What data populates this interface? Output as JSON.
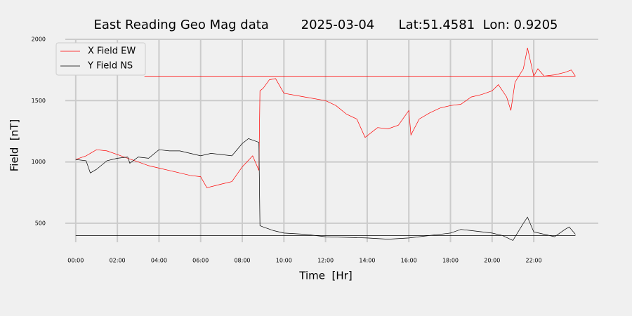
{
  "chart_data": {
    "type": "line",
    "title": "East Reading Geo Mag data        2025-03-04      Lat:51.4581  Lon: 0.9205",
    "x_label": "Time  [Hr]",
    "y_label": "Field  [nT]",
    "xlim": [
      -0.5,
      25.1
    ],
    "ylim": [
      345,
      2000
    ],
    "xticks": [
      {
        "value": 0,
        "label": "00:00"
      },
      {
        "value": 2,
        "label": "02:00"
      },
      {
        "value": 4,
        "label": "04:00"
      },
      {
        "value": 6,
        "label": "06:00"
      },
      {
        "value": 8,
        "label": "08:00"
      },
      {
        "value": 10,
        "label": "10:00"
      },
      {
        "value": 12,
        "label": "12:00"
      },
      {
        "value": 14,
        "label": "14:00"
      },
      {
        "value": 16,
        "label": "16:00"
      },
      {
        "value": 18,
        "label": "18:00"
      },
      {
        "value": 20,
        "label": "20:00"
      },
      {
        "value": 22,
        "label": "22:00"
      }
    ],
    "yticks": [
      500,
      1000,
      1500,
      2000
    ],
    "grid": true,
    "legend": "upper left",
    "series": [
      {
        "name": "X Field EW",
        "color": "#ff0000",
        "x": [
          0,
          0.5,
          1,
          1.5,
          2,
          2.5,
          3,
          3.5,
          4,
          4.5,
          5,
          5.5,
          6,
          6.3,
          7,
          7.5,
          8,
          8.5,
          8.8,
          8.85,
          9,
          9.3,
          9.6,
          10,
          11,
          12,
          12.5,
          13,
          13.5,
          13.9,
          14.5,
          15,
          15.5,
          16,
          16.1,
          16.5,
          17,
          17.5,
          18,
          18.5,
          19,
          19.5,
          20,
          20.3,
          20.7,
          20.9,
          21.1,
          21.5,
          21.7,
          22,
          22.2,
          22.5,
          23,
          23.5,
          23.8,
          24
        ],
        "values": [
          1020,
          1050,
          1100,
          1090,
          1060,
          1030,
          1000,
          970,
          950,
          930,
          910,
          890,
          880,
          790,
          820,
          840,
          960,
          1050,
          930,
          1580,
          1600,
          1670,
          1680,
          1560,
          1530,
          1500,
          1460,
          1390,
          1350,
          1200,
          1280,
          1270,
          1300,
          1420,
          1220,
          1350,
          1400,
          1440,
          1460,
          1470,
          1530,
          1550,
          1580,
          1630,
          1530,
          1420,
          1650,
          1760,
          1930,
          1700,
          1760,
          1700,
          1710,
          1730,
          1750,
          1700
        ]
      },
      {
        "name": "Y Field NS",
        "color": "#000000",
        "x": [
          0,
          0.5,
          0.7,
          1,
          1.5,
          2,
          2.5,
          2.6,
          3,
          3.5,
          4,
          4.5,
          5,
          5.5,
          6,
          6.5,
          7,
          7.5,
          8,
          8.3,
          8.8,
          8.85,
          9,
          9.5,
          10,
          11,
          12,
          13,
          14,
          15,
          16,
          17,
          18,
          18.5,
          19,
          20,
          20.5,
          21,
          21.5,
          21.7,
          22,
          22.5,
          23,
          23.5,
          23.7,
          24
        ],
        "values": [
          1020,
          1010,
          910,
          940,
          1010,
          1030,
          1040,
          990,
          1040,
          1030,
          1100,
          1090,
          1090,
          1070,
          1050,
          1070,
          1060,
          1050,
          1150,
          1190,
          1160,
          480,
          470,
          440,
          420,
          410,
          390,
          385,
          380,
          370,
          380,
          400,
          420,
          450,
          440,
          420,
          400,
          360,
          500,
          550,
          430,
          410,
          390,
          450,
          470,
          410
        ]
      }
    ],
    "reference_lines": [
      {
        "color": "#ff0000",
        "x": [
          3.3,
          24
        ],
        "values": [
          1700,
          1700
        ]
      },
      {
        "color": "#000000",
        "x": [
          0,
          24
        ],
        "values": [
          400,
          400
        ]
      }
    ]
  }
}
